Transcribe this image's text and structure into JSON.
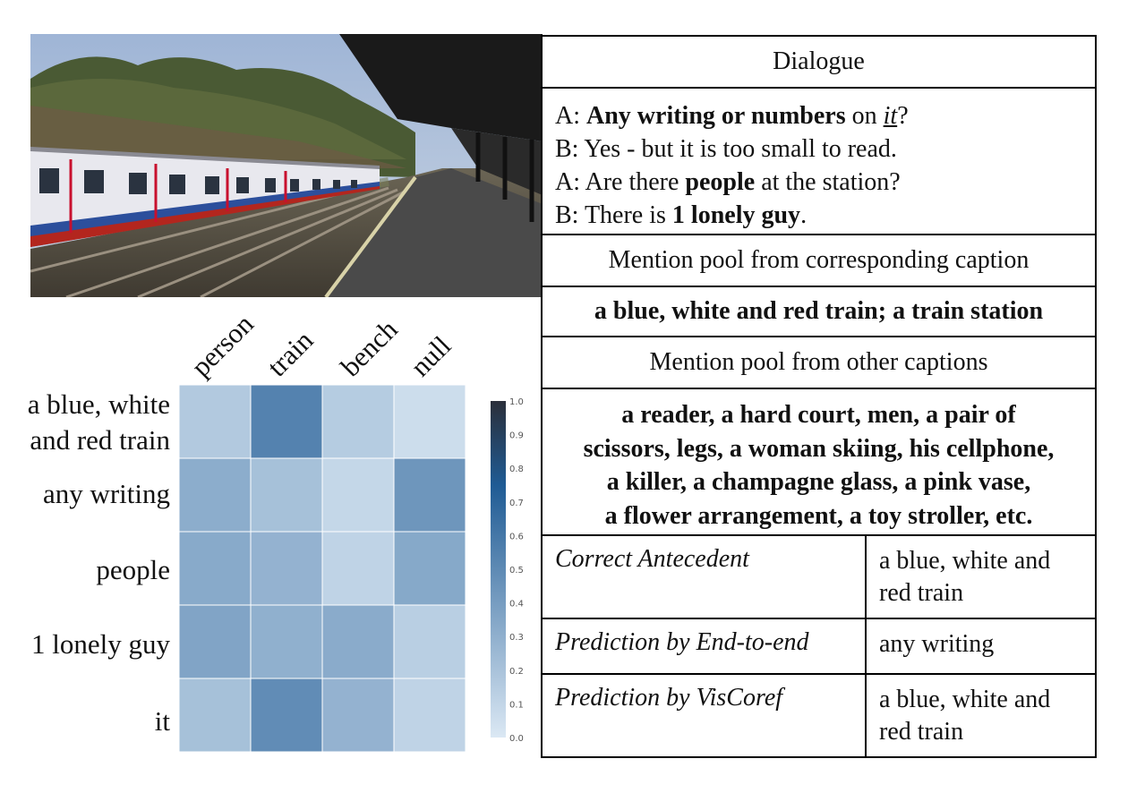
{
  "heatmap": {
    "columns": [
      "person",
      "train",
      "bench",
      "null"
    ],
    "rows": [
      "a blue, white and red train",
      "any writing",
      "people",
      "1 lonely guy",
      "it"
    ],
    "values": [
      [
        0.22,
        0.72,
        0.2,
        0.08
      ],
      [
        0.42,
        0.28,
        0.12,
        0.58
      ],
      [
        0.44,
        0.38,
        0.15,
        0.45
      ],
      [
        0.48,
        0.4,
        0.43,
        0.18
      ],
      [
        0.28,
        0.65,
        0.38,
        0.15
      ]
    ],
    "colorbar_ticks": [
      "1.0",
      "0.9",
      "0.8",
      "0.7",
      "0.6",
      "0.5",
      "0.4",
      "0.3",
      "0.2",
      "0.1",
      "0.0"
    ],
    "color_low": "#dbe8f4",
    "color_high": "#1f5b94"
  },
  "chart_data": {
    "type": "heatmap",
    "x_categories": [
      "person",
      "train",
      "bench",
      "null"
    ],
    "y_categories": [
      "a blue, white and red train",
      "any writing",
      "people",
      "1 lonely guy",
      "it"
    ],
    "values": [
      [
        0.22,
        0.72,
        0.2,
        0.08
      ],
      [
        0.42,
        0.28,
        0.12,
        0.58
      ],
      [
        0.44,
        0.38,
        0.15,
        0.45
      ],
      [
        0.48,
        0.4,
        0.43,
        0.18
      ],
      [
        0.28,
        0.65,
        0.38,
        0.15
      ]
    ],
    "colorbar_range": [
      0.0,
      1.0
    ]
  },
  "table": {
    "dialogue_header": "Dialogue",
    "dialogue": [
      {
        "speaker": "A:",
        "parts": [
          {
            "t": "Any writing  or numbers",
            "s": "b"
          },
          {
            "t": " on ",
            "s": ""
          },
          {
            "t": "it",
            "s": "u"
          },
          {
            "t": "?",
            "s": ""
          }
        ]
      },
      {
        "speaker": "B:",
        "parts": [
          {
            "t": "Yes - but it is too small to read.",
            "s": ""
          }
        ]
      },
      {
        "speaker": "A:",
        "parts": [
          {
            "t": "Are there ",
            "s": ""
          },
          {
            "t": "people",
            "s": "b"
          },
          {
            "t": " at the station?",
            "s": ""
          }
        ]
      },
      {
        "speaker": "B:",
        "parts": [
          {
            "t": "There is ",
            "s": ""
          },
          {
            "t": "1 lonely guy",
            "s": "b"
          },
          {
            "t": ".",
            "s": ""
          }
        ]
      }
    ],
    "pool_caption_header": "Mention pool from corresponding  caption",
    "pool_caption": "a blue, white and red train; a train station",
    "pool_other_header": "Mention pool from other captions",
    "pool_other_lines": [
      "a reader, a hard court, men, a pair of",
      "scissors, legs, a woman skiing, his cellphone,",
      "a killer, a champagne glass, a pink vase,",
      "a flower arrangement, a toy stroller, etc."
    ],
    "rows": [
      {
        "label": "Correct Antecedent",
        "value": "a blue, white and red train"
      },
      {
        "label": "Prediction by End-to-end",
        "value": "any writing"
      },
      {
        "label": "Prediction by VisCoref",
        "value": "a blue, white and red train"
      }
    ]
  }
}
